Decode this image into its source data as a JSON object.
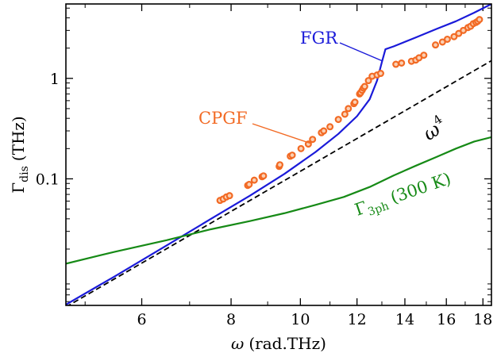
{
  "chart_data": {
    "type": "line",
    "xscale": "log",
    "yscale": "log",
    "xlim": [
      4.7,
      18.5
    ],
    "ylim": [
      0.0055,
      5.5
    ],
    "x_ticks": [
      6,
      8,
      10,
      12,
      14,
      16,
      18
    ],
    "x_tick_labels": [
      "6",
      "8",
      "10",
      "12",
      "14",
      "16",
      "18"
    ],
    "y_ticks": [
      0.1,
      1
    ],
    "y_tick_labels": [
      "0.1",
      "1"
    ],
    "xlabel": {
      "symbol": "ω",
      "unit": "(rad.THz)"
    },
    "ylabel": {
      "symbol": "Γ",
      "subscript": "dis",
      "unit": "(THz)"
    },
    "grid": false,
    "colors": {
      "fgr": "#1a1ad9",
      "cpgf": "#f26a24",
      "omega4": "#000000",
      "g3ph": "#168a16"
    },
    "series": [
      {
        "name": "FGR",
        "style": "solid",
        "color": "#1a1ad9",
        "x": [
          4.7,
          5.5,
          6.5,
          7.5,
          8.5,
          9.5,
          10.5,
          11.3,
          12.0,
          12.5,
          12.8,
          13.0,
          13.15,
          13.5,
          14.5,
          15.5,
          16.5,
          17.5,
          18.5
        ],
        "y": [
          0.0056,
          0.0107,
          0.0217,
          0.04,
          0.068,
          0.112,
          0.185,
          0.28,
          0.42,
          0.62,
          0.95,
          1.45,
          1.95,
          2.08,
          2.55,
          3.1,
          3.7,
          4.5,
          5.5
        ]
      },
      {
        "name": "CPGF",
        "style": "markers",
        "color": "#f26a24",
        "x": [
          7.72,
          7.8,
          7.88,
          7.96,
          8.44,
          8.48,
          8.62,
          8.84,
          8.88,
          9.34,
          9.36,
          9.68,
          9.74,
          10.02,
          10.26,
          10.4,
          10.7,
          10.78,
          11.0,
          11.3,
          11.54,
          11.67,
          11.88,
          11.92,
          12.1,
          12.14,
          12.2,
          12.25,
          12.3,
          12.45,
          12.6,
          12.8,
          12.95,
          13.6,
          13.85,
          14.3,
          14.5,
          14.65,
          14.88,
          15.45,
          15.8,
          16.05,
          16.4,
          16.65,
          16.9,
          17.15,
          17.3,
          17.45,
          17.6,
          17.7,
          17.8
        ],
        "y": [
          0.061,
          0.063,
          0.066,
          0.068,
          0.086,
          0.088,
          0.097,
          0.105,
          0.107,
          0.133,
          0.138,
          0.168,
          0.172,
          0.2,
          0.222,
          0.247,
          0.288,
          0.3,
          0.33,
          0.39,
          0.44,
          0.5,
          0.56,
          0.58,
          0.7,
          0.72,
          0.76,
          0.8,
          0.83,
          0.95,
          1.05,
          1.08,
          1.12,
          1.38,
          1.42,
          1.48,
          1.52,
          1.6,
          1.7,
          2.15,
          2.3,
          2.45,
          2.6,
          2.8,
          3.0,
          3.2,
          3.3,
          3.5,
          3.6,
          3.7,
          3.85
        ]
      },
      {
        "name": "ω4",
        "style": "dashed",
        "color": "#000000",
        "x": [
          4.7,
          18.5
        ],
        "y": [
          0.0053,
          1.5
        ]
      },
      {
        "name": "Γ3ph (300 K)",
        "style": "solid",
        "color": "#168a16",
        "x": [
          4.7,
          5.5,
          6.5,
          7.5,
          8.5,
          9.5,
          10.5,
          11.5,
          12.5,
          13.5,
          14.5,
          15.5,
          16.5,
          17.5,
          18.5
        ],
        "y": [
          0.0143,
          0.0188,
          0.0245,
          0.0315,
          0.038,
          0.0455,
          0.055,
          0.066,
          0.083,
          0.108,
          0.135,
          0.165,
          0.2,
          0.235,
          0.26
        ]
      }
    ],
    "annotations": {
      "fgr_label": "FGR",
      "cpgf_label": "CPGF",
      "omega_base": "ω",
      "omega_exp": "4",
      "g3ph_base": "Γ",
      "g3ph_sub": "3ph",
      "g3ph_rest": "(300 K)"
    }
  }
}
